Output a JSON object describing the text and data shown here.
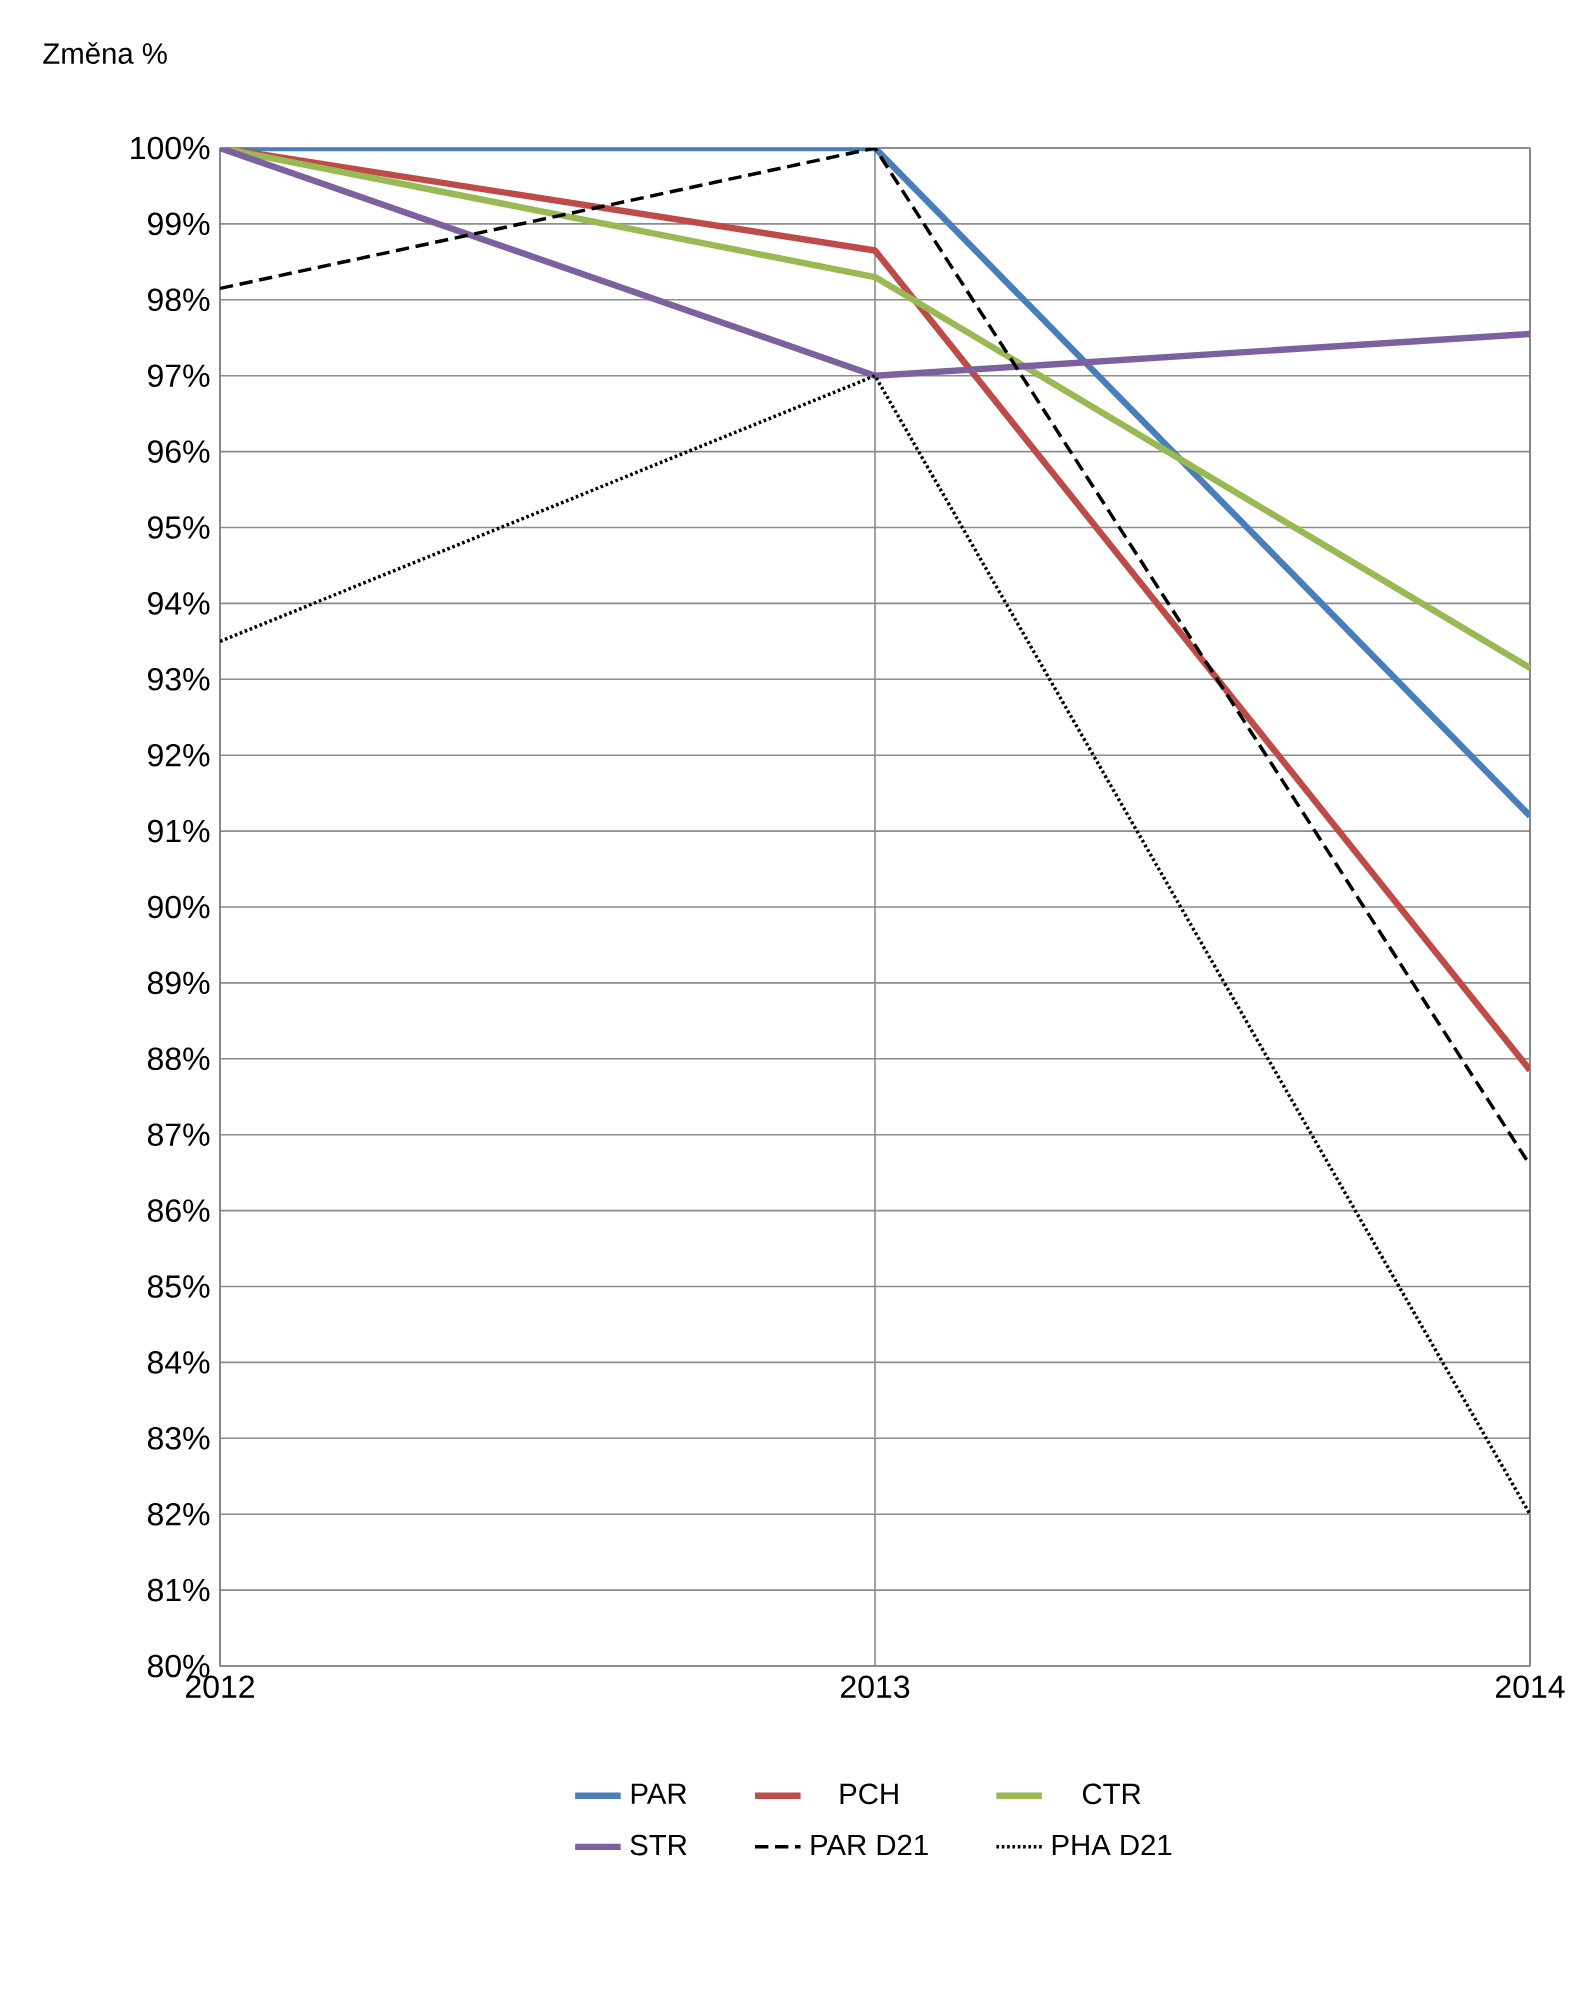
{
  "chart_data": {
    "type": "line",
    "ylabel": "Změna %",
    "x": [
      2012,
      2013,
      2014
    ],
    "xlim": [
      2012,
      2014
    ],
    "xticks": [
      2012,
      2013,
      2014
    ],
    "ylim": [
      80,
      100
    ],
    "yticks": [
      {
        "value": 80,
        "label": "80%"
      },
      {
        "value": 81,
        "label": "81%"
      },
      {
        "value": 82,
        "label": "82%"
      },
      {
        "value": 83,
        "label": "83%"
      },
      {
        "value": 84,
        "label": "84%"
      },
      {
        "value": 85,
        "label": "85%"
      },
      {
        "value": 86,
        "label": "86%"
      },
      {
        "value": 87,
        "label": "87%"
      },
      {
        "value": 88,
        "label": "88%"
      },
      {
        "value": 89,
        "label": "89%"
      },
      {
        "value": 90,
        "label": "90%"
      },
      {
        "value": 91,
        "label": "91%"
      },
      {
        "value": 92,
        "label": "92%"
      },
      {
        "value": 93,
        "label": "93%"
      },
      {
        "value": 94,
        "label": "94%"
      },
      {
        "value": 95,
        "label": "95%"
      },
      {
        "value": 96,
        "label": "96%"
      },
      {
        "value": 97,
        "label": "97%"
      },
      {
        "value": 98,
        "label": "98%"
      },
      {
        "value": 99,
        "label": "99%"
      },
      {
        "value": 100,
        "label": "100%"
      }
    ],
    "grid": true,
    "legend": "bottom",
    "marker": "none",
    "series": [
      {
        "name": "PAR",
        "color": "#4a7ebb",
        "line_style": "solid",
        "values": [
          100,
          100,
          91.2
        ]
      },
      {
        "name": "PCH",
        "color": "#be4b48",
        "line_style": "solid",
        "values": [
          100,
          98.65,
          87.85
        ]
      },
      {
        "name": "CTR",
        "color": "#98b954",
        "line_style": "solid",
        "values": [
          100,
          98.3,
          93.15
        ]
      },
      {
        "name": "STR",
        "color": "#7d60a0",
        "line_style": "solid",
        "values": [
          100,
          97.0,
          97.55
        ]
      },
      {
        "name": "PAR  D21",
        "color": "#000000",
        "line_style": "dashed",
        "values": [
          98.15,
          100,
          86.6
        ]
      },
      {
        "name": "PHA  D21",
        "color": "#000000",
        "line_style": "dotted",
        "values": [
          93.5,
          97.0,
          82.0
        ]
      }
    ]
  }
}
